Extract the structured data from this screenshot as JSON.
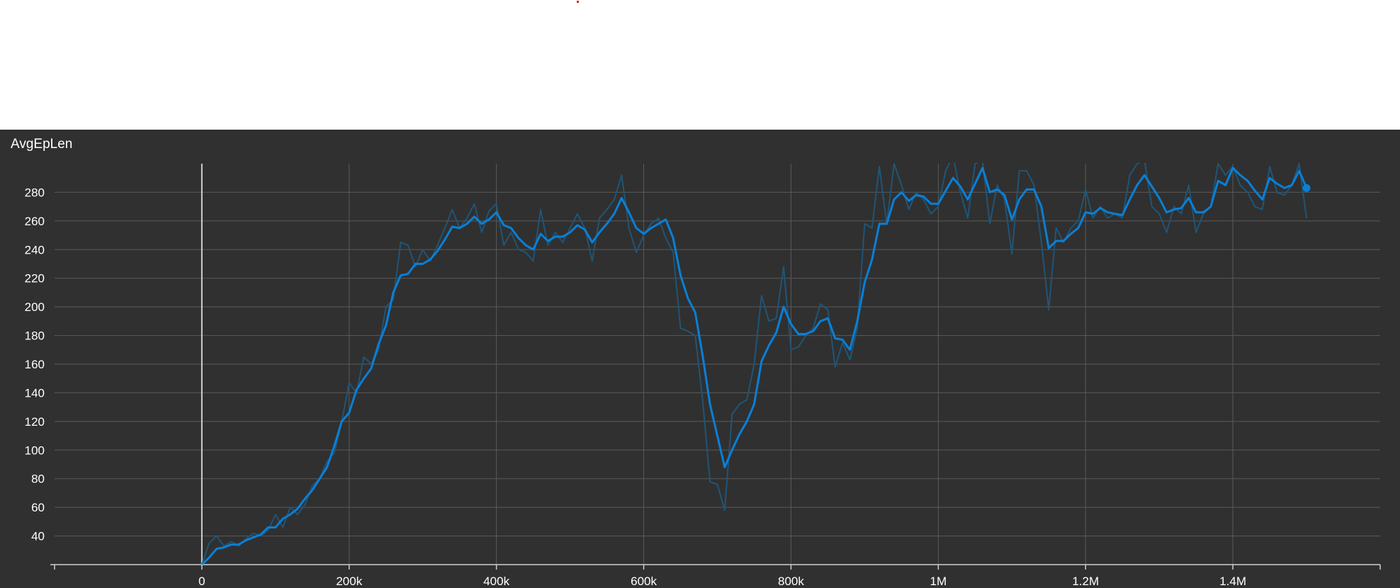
{
  "panel": {
    "title": "AvgEpLen"
  },
  "colors": {
    "background": "#303030",
    "grid": "#5a5a5a",
    "smoothed_line": "#0a7fd6",
    "raw_line": "#1f5577",
    "text": "#ffffff",
    "marker": "#e0201c"
  },
  "chart_data": {
    "type": "line",
    "title": "AvgEpLen",
    "xlabel": "",
    "ylabel": "",
    "xlim": [
      -200000,
      1600000
    ],
    "ylim": [
      20,
      300
    ],
    "x_ticks": [
      0,
      200000,
      400000,
      600000,
      800000,
      1000000,
      1200000,
      1400000
    ],
    "x_tick_labels": [
      "0",
      "200k",
      "400k",
      "600k",
      "800k",
      "1M",
      "1.2M",
      "1.4M"
    ],
    "y_ticks": [
      40,
      60,
      80,
      100,
      120,
      140,
      160,
      180,
      200,
      220,
      240,
      260,
      280
    ],
    "y_tick_labels": [
      "40",
      "60",
      "80",
      "100",
      "120",
      "140",
      "160",
      "180",
      "200",
      "220",
      "240",
      "260",
      "280"
    ],
    "grid": true,
    "legend": "none",
    "series": [
      {
        "style": "raw",
        "points": [
          [
            0,
            20
          ],
          [
            10000,
            35
          ],
          [
            20000,
            40
          ],
          [
            30000,
            33
          ],
          [
            40000,
            36
          ],
          [
            50000,
            33
          ],
          [
            60000,
            38
          ],
          [
            70000,
            42
          ],
          [
            80000,
            40
          ],
          [
            90000,
            44
          ],
          [
            100000,
            55
          ],
          [
            110000,
            46
          ],
          [
            120000,
            60
          ],
          [
            130000,
            55
          ],
          [
            140000,
            62
          ],
          [
            150000,
            75
          ],
          [
            160000,
            80
          ],
          [
            170000,
            92
          ],
          [
            180000,
            98
          ],
          [
            190000,
            120
          ],
          [
            200000,
            147
          ],
          [
            210000,
            140
          ],
          [
            220000,
            165
          ],
          [
            230000,
            160
          ],
          [
            240000,
            170
          ],
          [
            250000,
            200
          ],
          [
            260000,
            205
          ],
          [
            270000,
            245
          ],
          [
            280000,
            243
          ],
          [
            290000,
            228
          ],
          [
            300000,
            240
          ],
          [
            310000,
            232
          ],
          [
            320000,
            243
          ],
          [
            330000,
            255
          ],
          [
            340000,
            268
          ],
          [
            350000,
            255
          ],
          [
            360000,
            262
          ],
          [
            370000,
            272
          ],
          [
            380000,
            252
          ],
          [
            390000,
            267
          ],
          [
            400000,
            272
          ],
          [
            410000,
            243
          ],
          [
            420000,
            252
          ],
          [
            430000,
            240
          ],
          [
            440000,
            238
          ],
          [
            450000,
            232
          ],
          [
            460000,
            268
          ],
          [
            470000,
            243
          ],
          [
            480000,
            252
          ],
          [
            490000,
            245
          ],
          [
            500000,
            255
          ],
          [
            510000,
            265
          ],
          [
            520000,
            255
          ],
          [
            530000,
            232
          ],
          [
            540000,
            262
          ],
          [
            550000,
            268
          ],
          [
            560000,
            275
          ],
          [
            570000,
            292
          ],
          [
            580000,
            255
          ],
          [
            590000,
            238
          ],
          [
            600000,
            250
          ],
          [
            610000,
            258
          ],
          [
            620000,
            262
          ],
          [
            630000,
            248
          ],
          [
            640000,
            238
          ],
          [
            650000,
            185
          ],
          [
            660000,
            183
          ],
          [
            670000,
            180
          ],
          [
            680000,
            135
          ],
          [
            690000,
            78
          ],
          [
            700000,
            76
          ],
          [
            710000,
            58
          ],
          [
            720000,
            125
          ],
          [
            730000,
            132
          ],
          [
            740000,
            135
          ],
          [
            750000,
            160
          ],
          [
            760000,
            208
          ],
          [
            770000,
            190
          ],
          [
            780000,
            192
          ],
          [
            790000,
            228
          ],
          [
            800000,
            170
          ],
          [
            810000,
            172
          ],
          [
            820000,
            180
          ],
          [
            830000,
            185
          ],
          [
            840000,
            202
          ],
          [
            850000,
            198
          ],
          [
            860000,
            158
          ],
          [
            870000,
            175
          ],
          [
            880000,
            163
          ],
          [
            890000,
            185
          ],
          [
            900000,
            258
          ],
          [
            910000,
            255
          ],
          [
            920000,
            298
          ],
          [
            930000,
            258
          ],
          [
            940000,
            300
          ],
          [
            950000,
            285
          ],
          [
            960000,
            268
          ],
          [
            970000,
            280
          ],
          [
            980000,
            275
          ],
          [
            990000,
            265
          ],
          [
            1000000,
            270
          ],
          [
            1010000,
            295
          ],
          [
            1020000,
            305
          ],
          [
            1030000,
            280
          ],
          [
            1040000,
            262
          ],
          [
            1050000,
            300
          ],
          [
            1060000,
            302
          ],
          [
            1070000,
            258
          ],
          [
            1080000,
            285
          ],
          [
            1090000,
            275
          ],
          [
            1100000,
            237
          ],
          [
            1110000,
            295
          ],
          [
            1120000,
            295
          ],
          [
            1130000,
            285
          ],
          [
            1140000,
            245
          ],
          [
            1150000,
            198
          ],
          [
            1160000,
            255
          ],
          [
            1170000,
            245
          ],
          [
            1180000,
            255
          ],
          [
            1190000,
            260
          ],
          [
            1200000,
            282
          ],
          [
            1210000,
            262
          ],
          [
            1220000,
            270
          ],
          [
            1230000,
            262
          ],
          [
            1240000,
            265
          ],
          [
            1250000,
            262
          ],
          [
            1260000,
            292
          ],
          [
            1270000,
            300
          ],
          [
            1280000,
            302
          ],
          [
            1290000,
            270
          ],
          [
            1300000,
            265
          ],
          [
            1310000,
            252
          ],
          [
            1320000,
            270
          ],
          [
            1330000,
            265
          ],
          [
            1340000,
            285
          ],
          [
            1350000,
            252
          ],
          [
            1360000,
            265
          ],
          [
            1370000,
            270
          ],
          [
            1380000,
            300
          ],
          [
            1390000,
            292
          ],
          [
            1400000,
            298
          ],
          [
            1410000,
            285
          ],
          [
            1420000,
            280
          ],
          [
            1430000,
            270
          ],
          [
            1440000,
            268
          ],
          [
            1450000,
            298
          ],
          [
            1460000,
            280
          ],
          [
            1470000,
            278
          ],
          [
            1480000,
            285
          ],
          [
            1490000,
            300
          ],
          [
            1500000,
            262
          ]
        ]
      },
      {
        "style": "smoothed",
        "points": [
          [
            0,
            20
          ],
          [
            10000,
            25
          ],
          [
            20000,
            31
          ],
          [
            30000,
            32
          ],
          [
            40000,
            34
          ],
          [
            50000,
            34
          ],
          [
            60000,
            37
          ],
          [
            70000,
            39
          ],
          [
            80000,
            41
          ],
          [
            90000,
            46
          ],
          [
            100000,
            46
          ],
          [
            110000,
            52
          ],
          [
            120000,
            55
          ],
          [
            130000,
            59
          ],
          [
            140000,
            66
          ],
          [
            150000,
            72
          ],
          [
            160000,
            80
          ],
          [
            170000,
            88
          ],
          [
            180000,
            103
          ],
          [
            190000,
            120
          ],
          [
            200000,
            126
          ],
          [
            210000,
            142
          ],
          [
            220000,
            150
          ],
          [
            230000,
            157
          ],
          [
            240000,
            174
          ],
          [
            250000,
            187
          ],
          [
            260000,
            210
          ],
          [
            270000,
            222
          ],
          [
            280000,
            223
          ],
          [
            290000,
            230
          ],
          [
            300000,
            230
          ],
          [
            310000,
            233
          ],
          [
            320000,
            239
          ],
          [
            330000,
            247
          ],
          [
            340000,
            256
          ],
          [
            350000,
            255
          ],
          [
            360000,
            258
          ],
          [
            370000,
            263
          ],
          [
            380000,
            258
          ],
          [
            390000,
            261
          ],
          [
            400000,
            266
          ],
          [
            410000,
            257
          ],
          [
            420000,
            255
          ],
          [
            430000,
            248
          ],
          [
            440000,
            243
          ],
          [
            450000,
            240
          ],
          [
            460000,
            251
          ],
          [
            470000,
            246
          ],
          [
            480000,
            249
          ],
          [
            490000,
            249
          ],
          [
            500000,
            252
          ],
          [
            510000,
            257
          ],
          [
            520000,
            254
          ],
          [
            530000,
            245
          ],
          [
            540000,
            252
          ],
          [
            550000,
            258
          ],
          [
            560000,
            265
          ],
          [
            570000,
            276
          ],
          [
            580000,
            266
          ],
          [
            590000,
            255
          ],
          [
            600000,
            251
          ],
          [
            610000,
            255
          ],
          [
            620000,
            258
          ],
          [
            630000,
            261
          ],
          [
            640000,
            248
          ],
          [
            650000,
            222
          ],
          [
            660000,
            206
          ],
          [
            670000,
            196
          ],
          [
            680000,
            166
          ],
          [
            690000,
            132
          ],
          [
            700000,
            110
          ],
          [
            710000,
            88
          ],
          [
            720000,
            100
          ],
          [
            730000,
            111
          ],
          [
            740000,
            120
          ],
          [
            750000,
            132
          ],
          [
            760000,
            162
          ],
          [
            770000,
            173
          ],
          [
            780000,
            182
          ],
          [
            790000,
            200
          ],
          [
            800000,
            188
          ],
          [
            810000,
            181
          ],
          [
            820000,
            181
          ],
          [
            830000,
            183
          ],
          [
            840000,
            190
          ],
          [
            850000,
            192
          ],
          [
            860000,
            178
          ],
          [
            870000,
            177
          ],
          [
            880000,
            170
          ],
          [
            890000,
            190
          ],
          [
            900000,
            217
          ],
          [
            910000,
            233
          ],
          [
            920000,
            258
          ],
          [
            930000,
            258
          ],
          [
            940000,
            275
          ],
          [
            950000,
            280
          ],
          [
            960000,
            274
          ],
          [
            970000,
            278
          ],
          [
            980000,
            277
          ],
          [
            990000,
            272
          ],
          [
            1000000,
            272
          ],
          [
            1010000,
            281
          ],
          [
            1020000,
            290
          ],
          [
            1030000,
            284
          ],
          [
            1040000,
            275
          ],
          [
            1050000,
            286
          ],
          [
            1060000,
            297
          ],
          [
            1070000,
            280
          ],
          [
            1080000,
            282
          ],
          [
            1090000,
            278
          ],
          [
            1100000,
            261
          ],
          [
            1110000,
            275
          ],
          [
            1120000,
            282
          ],
          [
            1130000,
            282
          ],
          [
            1140000,
            270
          ],
          [
            1150000,
            241
          ],
          [
            1160000,
            246
          ],
          [
            1170000,
            246
          ],
          [
            1180000,
            251
          ],
          [
            1190000,
            255
          ],
          [
            1200000,
            266
          ],
          [
            1210000,
            265
          ],
          [
            1220000,
            269
          ],
          [
            1230000,
            266
          ],
          [
            1240000,
            265
          ],
          [
            1250000,
            264
          ],
          [
            1260000,
            275
          ],
          [
            1270000,
            285
          ],
          [
            1280000,
            292
          ],
          [
            1290000,
            284
          ],
          [
            1300000,
            276
          ],
          [
            1310000,
            266
          ],
          [
            1320000,
            268
          ],
          [
            1330000,
            269
          ],
          [
            1340000,
            276
          ],
          [
            1350000,
            266
          ],
          [
            1360000,
            266
          ],
          [
            1370000,
            270
          ],
          [
            1380000,
            288
          ],
          [
            1390000,
            285
          ],
          [
            1400000,
            297
          ],
          [
            1410000,
            292
          ],
          [
            1420000,
            288
          ],
          [
            1430000,
            281
          ],
          [
            1440000,
            275
          ],
          [
            1450000,
            290
          ],
          [
            1460000,
            286
          ],
          [
            1470000,
            283
          ],
          [
            1480000,
            285
          ],
          [
            1490000,
            295
          ],
          [
            1500000,
            283
          ]
        ]
      }
    ]
  }
}
